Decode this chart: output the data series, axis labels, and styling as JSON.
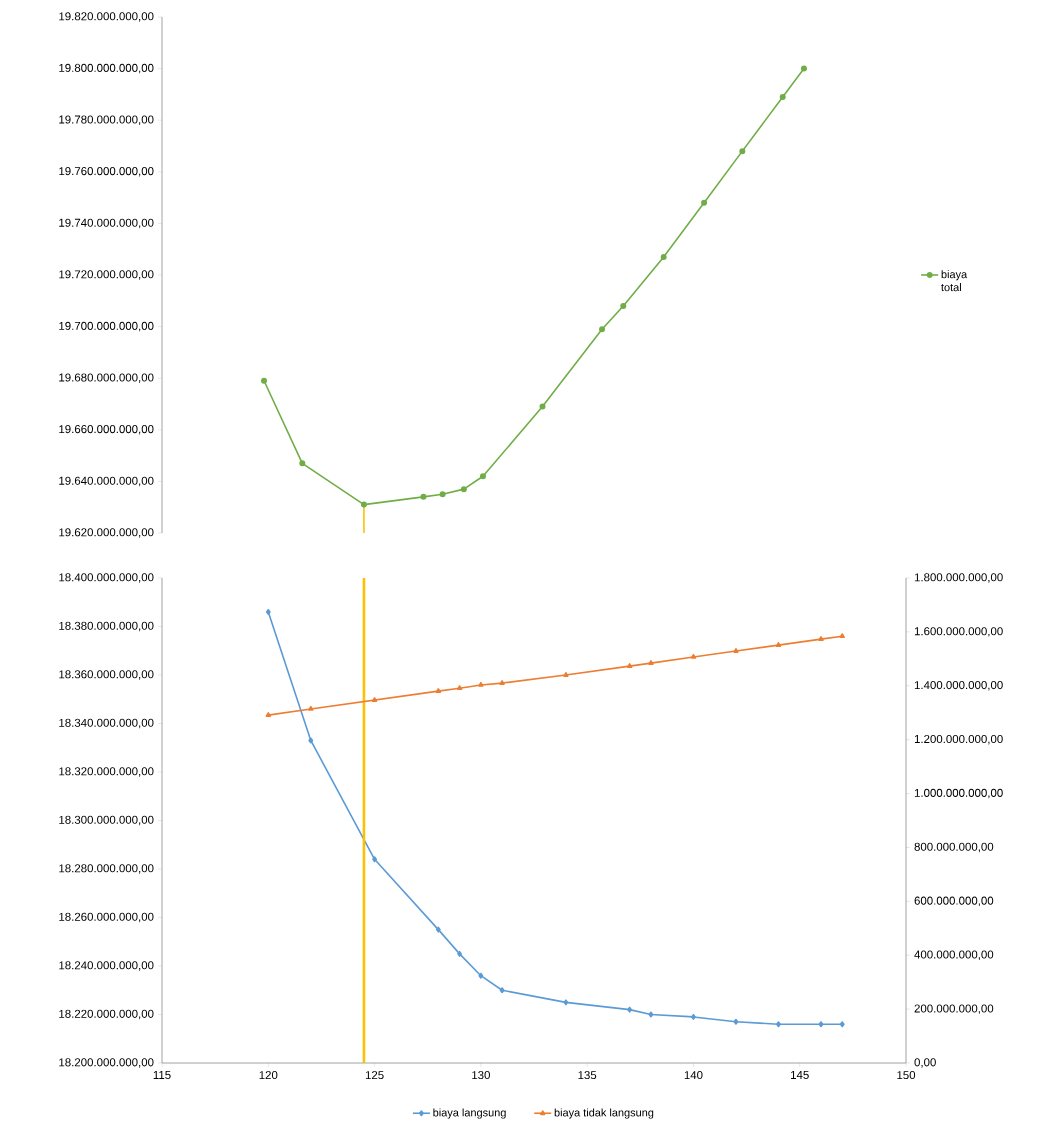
{
  "chart_data": [
    {
      "type": "line",
      "xlim": [
        115,
        150
      ],
      "ylim": [
        19620000000,
        19820000000
      ],
      "yticks": [
        {
          "value": 19620000000,
          "label": "19.620.000.000,00"
        },
        {
          "value": 19640000000,
          "label": "19.640.000.000,00"
        },
        {
          "value": 19660000000,
          "label": "19.660.000.000,00"
        },
        {
          "value": 19680000000,
          "label": "19.680.000.000,00"
        },
        {
          "value": 19700000000,
          "label": "19.700.000.000,00"
        },
        {
          "value": 19720000000,
          "label": "19.720.000.000,00"
        },
        {
          "value": 19740000000,
          "label": "19.740.000.000,00"
        },
        {
          "value": 19760000000,
          "label": "19.760.000.000,00"
        },
        {
          "value": 19780000000,
          "label": "19.780.000.000,00"
        },
        {
          "value": 19800000000,
          "label": "19.800.000.000,00"
        },
        {
          "value": 19820000000,
          "label": "19.820.000.000,00"
        }
      ],
      "tick_labels": "y",
      "legend": "right",
      "series": [
        {
          "name": "biaya total",
          "color": "#70ad47",
          "marker": "circle",
          "x": [
            119.8,
            121.6,
            124.5,
            127.3,
            128.2,
            129.2,
            130.1,
            132.9,
            135.7,
            136.7,
            138.6,
            140.5,
            142.3,
            144.2,
            145.2
          ],
          "values": [
            19679000000,
            19647000000,
            19631000000,
            19634000000,
            19635000000,
            19637000000,
            19642000000,
            19669000000,
            19699000000,
            19708000000,
            19727000000,
            19748000000,
            19768000000,
            19789000000,
            19800000000
          ]
        },
        {
          "color": "#ffc000",
          "marker": "none",
          "x": [
            124.5,
            124.5
          ],
          "values": [
            19620000000,
            19631000000
          ]
        }
      ]
    },
    {
      "type": "line",
      "xlim": [
        115,
        150
      ],
      "xticks": [
        115,
        120,
        125,
        130,
        135,
        140,
        145,
        150
      ],
      "ylim": [
        18200000000,
        18400000000
      ],
      "yticks": [
        {
          "value": 18200000000,
          "label": "18.200.000.000,00"
        },
        {
          "value": 18220000000,
          "label": "18.220.000.000,00"
        },
        {
          "value": 18240000000,
          "label": "18.240.000.000,00"
        },
        {
          "value": 18260000000,
          "label": "18.260.000.000,00"
        },
        {
          "value": 18280000000,
          "label": "18.280.000.000,00"
        },
        {
          "value": 18300000000,
          "label": "18.300.000.000,00"
        },
        {
          "value": 18320000000,
          "label": "18.320.000.000,00"
        },
        {
          "value": 18340000000,
          "label": "18.340.000.000,00"
        },
        {
          "value": 18360000000,
          "label": "18.360.000.000,00"
        },
        {
          "value": 18380000000,
          "label": "18.380.000.000,00"
        },
        {
          "value": 18400000000,
          "label": "18.400.000.000,00"
        }
      ],
      "y2lim": [
        0,
        1800000000
      ],
      "y2ticks": [
        {
          "value": 0,
          "label": "0,00"
        },
        {
          "value": 200000000,
          "label": "200.000.000,00"
        },
        {
          "value": 400000000,
          "label": "400.000.000,00"
        },
        {
          "value": 600000000,
          "label": "600.000.000,00"
        },
        {
          "value": 800000000,
          "label": "800.000.000,00"
        },
        {
          "value": 1000000000,
          "label": "1.000.000.000,00"
        },
        {
          "value": 1200000000,
          "label": "1.200.000.000,00"
        },
        {
          "value": 1400000000,
          "label": "1.400.000.000,00"
        },
        {
          "value": 1600000000,
          "label": "1.600.000.000,00"
        },
        {
          "value": 1800000000,
          "label": "1.800.000.000,00"
        }
      ],
      "legend": "bottom",
      "ref_lines": [
        {
          "axis": "x",
          "value": 124.5,
          "color": "#ffc000"
        }
      ],
      "x": [
        120,
        122,
        125,
        128,
        129,
        130,
        131,
        134,
        137,
        138,
        140,
        142,
        144,
        146,
        147
      ],
      "series": [
        {
          "name": "biaya langsung",
          "color": "#5b9bd5",
          "marker": "diamond",
          "values": [
            18386000000,
            18333000000,
            18284000000,
            18255000000,
            18245000000,
            18236000000,
            18230000000,
            18225000000,
            18222000000,
            18220000000,
            18219000000,
            18217000000,
            18216000000,
            18216000000,
            18216000000
          ]
        },
        {
          "name": "biaya tidak langsung",
          "color": "#ed7d31",
          "marker": "triangle",
          "axis": "y2",
          "values": [
            1291000000,
            1314000000,
            1347000000,
            1380000000,
            1391000000,
            1403000000,
            1410000000,
            1440000000,
            1473000000,
            1484000000,
            1507000000,
            1529000000,
            1551000000,
            1573000000,
            1584000000
          ]
        }
      ]
    }
  ]
}
